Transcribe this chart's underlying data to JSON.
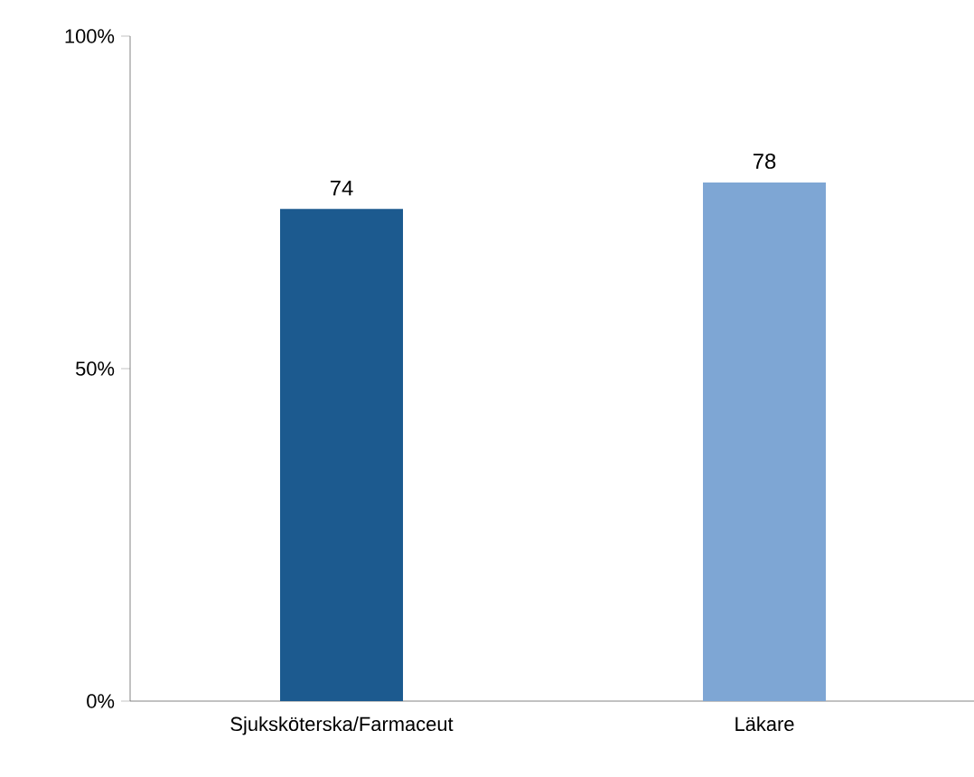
{
  "chart_data": {
    "type": "bar",
    "categories": [
      "Sjuksköterska/Farmaceut",
      "Läkare"
    ],
    "values": [
      74,
      78
    ],
    "colors": [
      "#1c5a8f",
      "#7ea6d4"
    ],
    "ylim": [
      0,
      100
    ],
    "yticks": [
      {
        "value": 0,
        "label": "0%"
      },
      {
        "value": 50,
        "label": "50%"
      },
      {
        "value": 100,
        "label": "100%"
      }
    ],
    "data_labels": true
  }
}
